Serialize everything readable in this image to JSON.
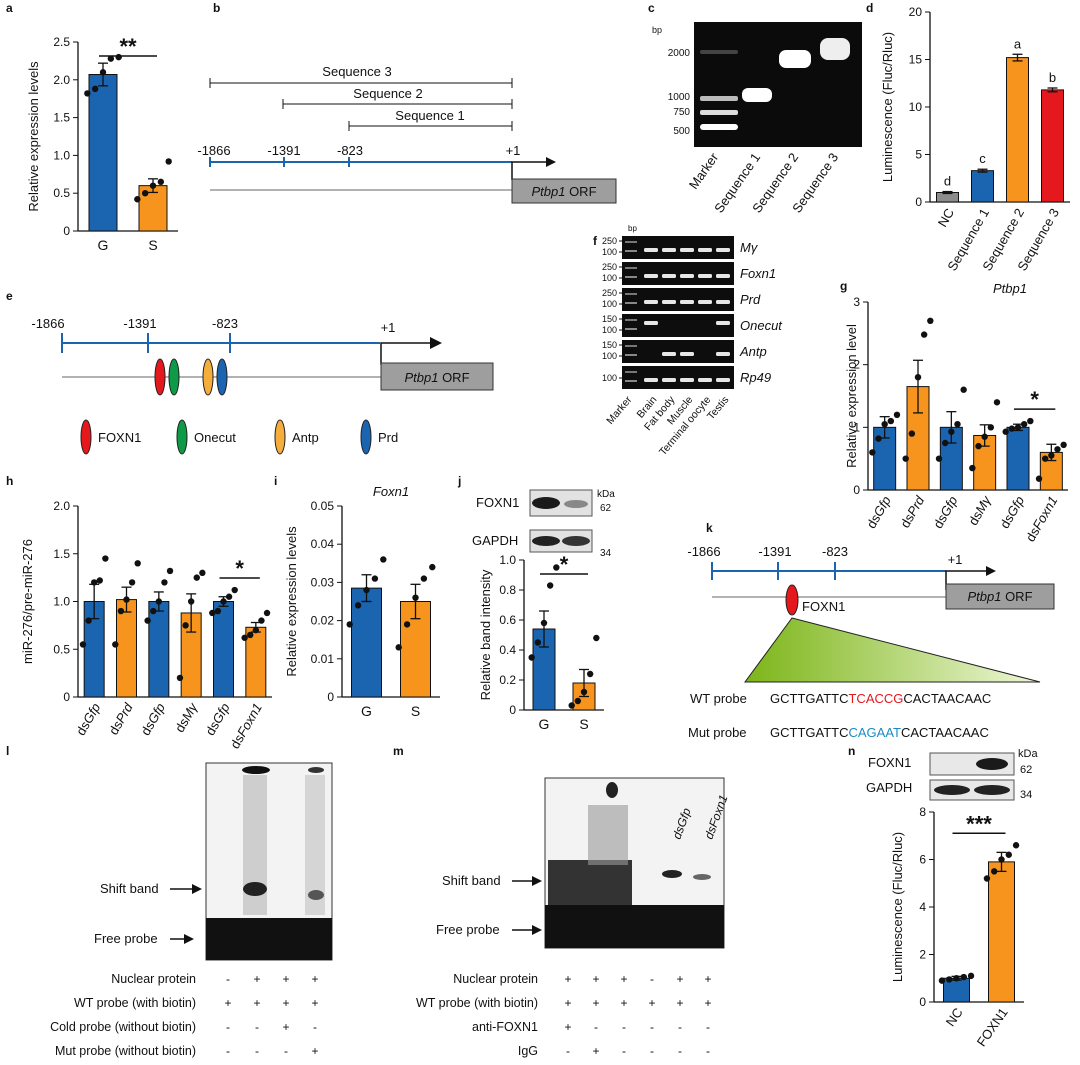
{
  "panel_letters": {
    "a": "a",
    "b": "b",
    "c": "c",
    "d": "d",
    "e": "e",
    "f": "f",
    "g": "g",
    "h": "h",
    "i": "i",
    "j": "j",
    "k": "k",
    "l": "l",
    "m": "m",
    "n": "n"
  },
  "colors": {
    "blue": "#1a64b0",
    "orange": "#f7941d",
    "red": "#e4181d",
    "gray": "#8c8c8c",
    "green": "#8cc63f"
  },
  "chart_data": [
    {
      "panel": "a",
      "type": "bar",
      "categories": [
        "G",
        "S"
      ],
      "values": [
        2.07,
        0.6
      ],
      "errors": [
        0.15,
        0.09
      ],
      "points": [
        [
          1.82,
          1.88,
          2.1,
          2.28,
          2.3
        ],
        [
          0.42,
          0.5,
          0.6,
          0.65,
          0.92
        ]
      ],
      "ylabel": "Relative expression levels",
      "ylim": [
        0,
        2.5
      ],
      "yticks": [
        "0",
        "0.5",
        "1.0",
        "1.5",
        "2.0",
        "2.5"
      ],
      "significance": "**",
      "colors": [
        "blue",
        "orange"
      ]
    },
    {
      "panel": "d",
      "type": "bar",
      "categories": [
        "NC",
        "Sequence 1",
        "Sequence 2",
        "Sequence 3"
      ],
      "values": [
        1,
        3.3,
        15.2,
        11.8
      ],
      "errors": [
        0.1,
        0.15,
        0.35,
        0.2
      ],
      "letters": [
        "d",
        "c",
        "a",
        "b"
      ],
      "ylabel": "Luminescence (Fluc/Rluc)",
      "xlabel": "Ptbp1",
      "ylim": [
        0,
        20
      ],
      "yticks": [
        "0",
        "5",
        "10",
        "15",
        "20"
      ],
      "colors": [
        "gray",
        "blue",
        "orange",
        "red"
      ]
    },
    {
      "panel": "g",
      "type": "bar",
      "categories": [
        "dsGfp",
        "dsPrd",
        "dsGfp",
        "dsMγ",
        "dsGfp",
        "dsFoxn1"
      ],
      "values": [
        1.0,
        1.65,
        1.0,
        0.87,
        1.0,
        0.6
      ],
      "errors": [
        0.17,
        0.42,
        0.25,
        0.17,
        0.05,
        0.13
      ],
      "points": [
        [
          0.6,
          0.82,
          1.05,
          1.1,
          1.2
        ],
        [
          0.5,
          0.9,
          1.8,
          2.48,
          2.7
        ],
        [
          0.5,
          0.75,
          0.93,
          1.05,
          1.6
        ],
        [
          0.35,
          0.7,
          0.85,
          1.0,
          1.4
        ],
        [
          0.93,
          0.98,
          1.0,
          1.05,
          1.1
        ],
        [
          0.18,
          0.5,
          0.55,
          0.65,
          0.72
        ]
      ],
      "ylabel": "Relative expression level",
      "ylim": [
        0,
        3
      ],
      "yticks": [
        "0",
        "1",
        "2",
        "3"
      ],
      "significance": "*",
      "colors": [
        "blue",
        "orange",
        "blue",
        "orange",
        "blue",
        "orange"
      ]
    },
    {
      "panel": "h",
      "type": "bar",
      "categories": [
        "dsGfp",
        "dsPrd",
        "dsGfp",
        "dsMγ",
        "dsGfp",
        "dsFoxn1"
      ],
      "values": [
        1.0,
        1.02,
        1.0,
        0.88,
        1.0,
        0.73
      ],
      "errors": [
        0.18,
        0.13,
        0.1,
        0.2,
        0.05,
        0.05
      ],
      "points": [
        [
          0.55,
          0.8,
          1.2,
          1.22,
          1.45
        ],
        [
          0.55,
          0.9,
          1.02,
          1.2,
          1.4
        ],
        [
          0.8,
          0.9,
          1.0,
          1.2,
          1.32
        ],
        [
          0.2,
          0.75,
          1.0,
          1.25,
          1.3
        ],
        [
          0.88,
          0.9,
          1.0,
          1.05,
          1.12
        ],
        [
          0.62,
          0.65,
          0.7,
          0.8,
          0.88
        ]
      ],
      "ylabel": "miR-276/pre-miR-276",
      "ylim": [
        0,
        2.0
      ],
      "yticks": [
        "0",
        "0.5",
        "1.0",
        "1.5",
        "2.0"
      ],
      "significance": "*",
      "colors": [
        "blue",
        "orange",
        "blue",
        "orange",
        "blue",
        "orange"
      ]
    },
    {
      "panel": "i",
      "type": "bar",
      "categories": [
        "G",
        "S"
      ],
      "values": [
        0.0285,
        0.025
      ],
      "errors": [
        0.0035,
        0.0045
      ],
      "points": [
        [
          0.019,
          0.024,
          0.028,
          0.031,
          0.036
        ],
        [
          0.013,
          0.019,
          0.026,
          0.031,
          0.034
        ]
      ],
      "title": "Foxn1",
      "ylabel": "Relative expression levels",
      "ylim": [
        0,
        0.05
      ],
      "yticks": [
        "0",
        "0.01",
        "0.02",
        "0.03",
        "0.04",
        "0.05"
      ],
      "colors": [
        "blue",
        "orange"
      ]
    },
    {
      "panel": "j",
      "type": "bar",
      "categories": [
        "G",
        "S"
      ],
      "values": [
        0.54,
        0.18
      ],
      "errors": [
        0.12,
        0.09
      ],
      "points": [
        [
          0.35,
          0.45,
          0.58,
          0.83,
          0.95
        ],
        [
          0.03,
          0.06,
          0.12,
          0.24,
          0.48
        ]
      ],
      "ylabel": "Relative band intensity",
      "ylim": [
        0,
        1.0
      ],
      "yticks": [
        "0",
        "0.2",
        "0.4",
        "0.6",
        "0.8",
        "1.0"
      ],
      "significance": "*",
      "colors": [
        "blue",
        "orange"
      ]
    },
    {
      "panel": "n",
      "type": "bar",
      "categories": [
        "NC",
        "FOXN1"
      ],
      "values": [
        1.0,
        5.9
      ],
      "errors": [
        0.08,
        0.4
      ],
      "points": [
        [
          0.9,
          0.95,
          1.0,
          1.05,
          1.1
        ],
        [
          5.2,
          5.5,
          6.0,
          6.2,
          6.6
        ]
      ],
      "ylabel": "Luminescence (Fluc/Rluc)",
      "ylim": [
        0,
        8
      ],
      "yticks": [
        "0",
        "2",
        "4",
        "6",
        "8"
      ],
      "significance": "***",
      "colors": [
        "blue",
        "orange"
      ]
    }
  ],
  "panel_b": {
    "seq3": "Sequence 3",
    "seq2": "Sequence 2",
    "seq1": "Sequence 1",
    "p1": "-1866",
    "p2": "-1391",
    "p3": "-823",
    "p4": "+1",
    "orf_gene": "Ptbp1",
    "orf_suffix": " ORF"
  },
  "panel_c": {
    "bp": "bp",
    "marks": [
      "2000",
      "1000",
      "750",
      "500"
    ],
    "lanes": [
      "Marker",
      "Sequence 1",
      "Sequence 2",
      "Sequence 3"
    ]
  },
  "panel_e": {
    "p1": "-1866",
    "p2": "-1391",
    "p3": "-823",
    "p4": "+1",
    "orf_gene": "Ptbp1",
    "orf_suffix": " ORF",
    "legend": [
      "FOXN1",
      "Onecut",
      "Antp",
      "Prd"
    ]
  },
  "panel_f": {
    "bp": "bp",
    "genes": [
      "Mγ",
      "Foxn1",
      "Prd",
      "Onecut",
      "Antp",
      "Rp49"
    ],
    "sizes": [
      [
        "250",
        "100"
      ],
      [
        "250",
        "100"
      ],
      [
        "250",
        "100"
      ],
      [
        "150",
        "100"
      ],
      [
        "150",
        "100"
      ],
      [
        "100"
      ]
    ],
    "lanes": [
      "Marker",
      "Brain",
      "Fat body",
      "Muscle",
      "Terminal oocyte",
      "Testis"
    ]
  },
  "panel_j": {
    "foxn1": "FOXN1",
    "gapdh": "GAPDH",
    "kda": "kDa",
    "s1": "62",
    "s2": "34"
  },
  "panel_k": {
    "p1": "-1866",
    "p2": "-1391",
    "p3": "-823",
    "p4": "+1",
    "orf_gene": "Ptbp1",
    "orf_suffix": " ORF",
    "tf": "FOXN1",
    "wt_label": "WT probe",
    "wt_a": "GCTTGATTC",
    "wt_b": "TCACCG",
    "wt_c": "CACTAACAAC",
    "mut_label": "Mut probe",
    "mut_a": "GCTTGATTC",
    "mut_b": "CAGAAT",
    "mut_c": "CACTAACAAC"
  },
  "panel_l": {
    "shift": "Shift band",
    "free": "Free probe",
    "rows": [
      {
        "label": "Nuclear protein",
        "v": [
          "-",
          "+",
          "+",
          "+"
        ]
      },
      {
        "label": "WT probe (with biotin)",
        "v": [
          "+",
          "+",
          "+",
          "+"
        ]
      },
      {
        "label": "Cold probe (without biotin)",
        "v": [
          "-",
          "-",
          "+",
          "-"
        ]
      },
      {
        "label": "Mut probe (without biotin)",
        "v": [
          "-",
          "-",
          "-",
          "+"
        ]
      }
    ]
  },
  "panel_m": {
    "shift": "Shift band",
    "free": "Free probe",
    "lane_gfp": "dsGfp",
    "lane_foxn1": "dsFoxn1",
    "rows": [
      {
        "label": "Nuclear protein",
        "v": [
          "+",
          "+",
          "+",
          "-",
          "+",
          "+"
        ]
      },
      {
        "label": "WT probe (with biotin)",
        "v": [
          "+",
          "+",
          "+",
          "+",
          "+",
          "+"
        ]
      },
      {
        "label": "anti-FOXN1",
        "v": [
          "+",
          "-",
          "-",
          "-",
          "-",
          "-"
        ]
      },
      {
        "label": "IgG",
        "v": [
          "-",
          "+",
          "-",
          "-",
          "-",
          "-"
        ]
      }
    ]
  },
  "panel_n": {
    "foxn1": "FOXN1",
    "gapdh": "GAPDH",
    "kda": "kDa",
    "s1": "62",
    "s2": "34"
  }
}
